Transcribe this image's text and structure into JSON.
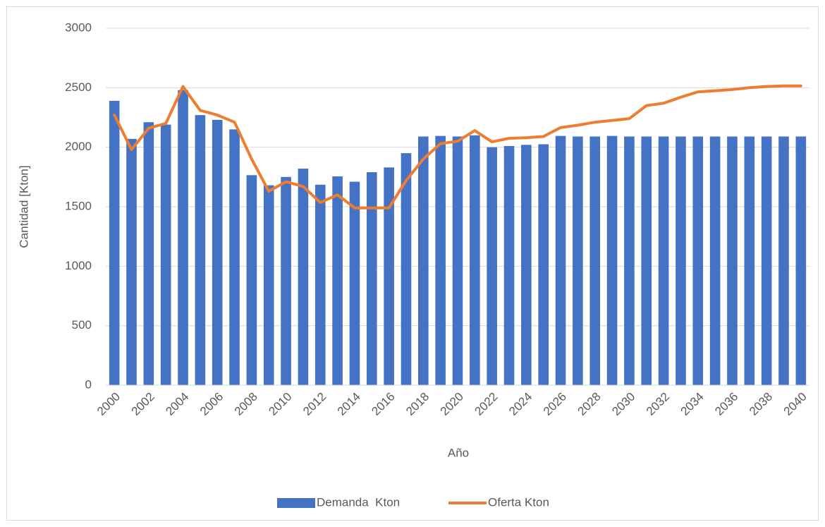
{
  "chart_data": {
    "type": "bar",
    "x_label": "Año",
    "y_label": "Cantidad [Kton]",
    "categories": [
      "2000",
      null,
      "2002",
      null,
      "2004",
      null,
      "2006",
      null,
      "2008",
      null,
      "2010",
      null,
      "2012",
      null,
      "2014",
      null,
      "2016",
      null,
      "2018",
      null,
      "2020",
      null,
      "2022",
      null,
      "2024",
      null,
      "2026",
      null,
      "2028",
      null,
      "2030",
      null,
      "2032",
      null,
      "2034",
      null,
      "2036",
      null,
      "2038",
      null,
      "2040"
    ],
    "series": [
      {
        "name": "Demanda  Kton",
        "type": "bar",
        "color": "#4472c4",
        "values": [
          2390,
          2070,
          2210,
          2190,
          2480,
          2270,
          2230,
          2150,
          1765,
          1680,
          1750,
          1820,
          1685,
          1755,
          1710,
          1790,
          1830,
          1950,
          2090,
          2095,
          2090,
          2100,
          2000,
          2010,
          2020,
          2025,
          2095,
          2090,
          2090,
          2095,
          2090,
          2090,
          2090,
          2090,
          2090,
          2090,
          2090,
          2090,
          2090,
          2090,
          2090
        ]
      },
      {
        "name": "Oferta Kton",
        "type": "line",
        "color": "#ed7d31",
        "values": [
          2270,
          1980,
          2160,
          2200,
          2510,
          2310,
          2270,
          2210,
          1900,
          1630,
          1710,
          1670,
          1535,
          1600,
          1490,
          1490,
          1490,
          1720,
          1900,
          2030,
          2050,
          2140,
          2045,
          2075,
          2080,
          2090,
          2165,
          2185,
          2210,
          2225,
          2240,
          2350,
          2370,
          2420,
          2465,
          2475,
          2485,
          2500,
          2510,
          2515,
          2515
        ]
      }
    ],
    "ylim": [
      0,
      3000
    ],
    "yticks": [
      0,
      500,
      1000,
      1500,
      2000,
      2500,
      3000
    ],
    "grid": true,
    "legend": "bottom"
  }
}
